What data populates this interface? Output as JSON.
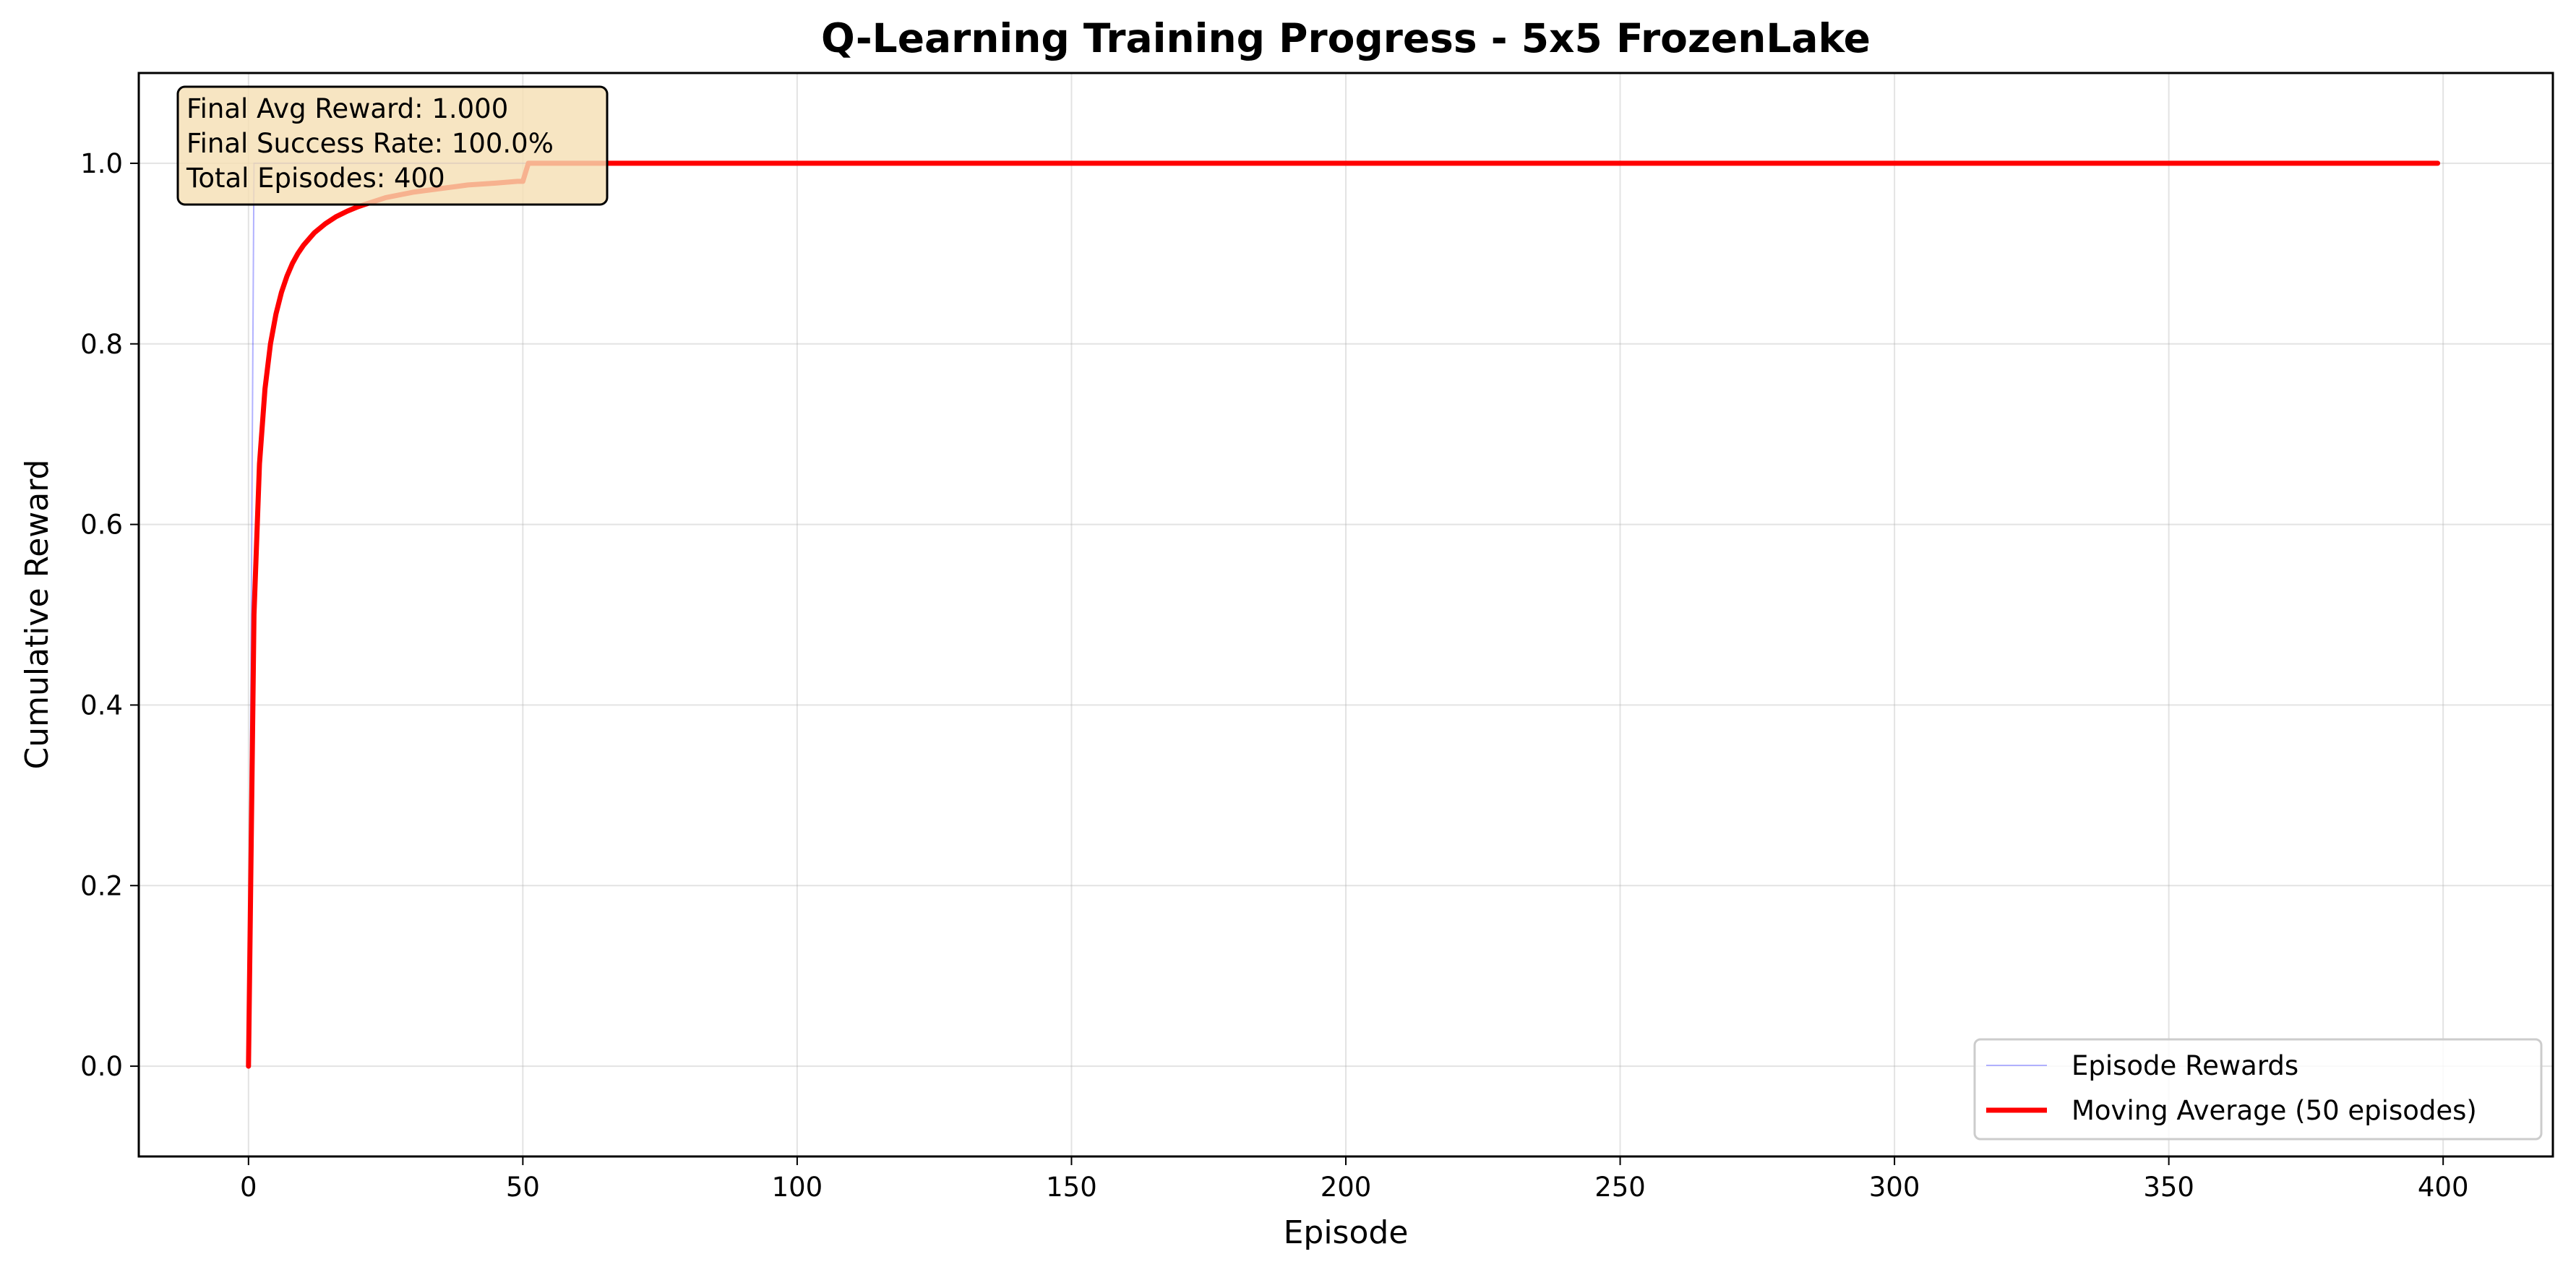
{
  "chart_data": {
    "type": "line",
    "title": "Q-Learning Training Progress - 5x5 FrozenLake",
    "xlabel": "Episode",
    "ylabel": "Cumulative Reward",
    "xlim": [
      -20,
      420
    ],
    "ylim": [
      -0.1,
      1.1
    ],
    "xticks": [
      0,
      50,
      100,
      150,
      200,
      250,
      300,
      350,
      400
    ],
    "yticks": [
      0.0,
      0.2,
      0.4,
      0.6,
      0.8,
      1.0
    ],
    "xtick_labels": [
      "0",
      "50",
      "100",
      "150",
      "200",
      "250",
      "300",
      "350",
      "400"
    ],
    "ytick_labels": [
      "0.0",
      "0.2",
      "0.4",
      "0.6",
      "0.8",
      "1.0"
    ],
    "grid": true,
    "legend_position": "lower-right",
    "series": [
      {
        "name": "Episode Rewards",
        "color": "#0000ff",
        "style": "thin-faint",
        "x": [
          0,
          1,
          2,
          399
        ],
        "y": [
          0.0,
          1.0,
          1.0,
          1.0
        ]
      },
      {
        "name": "Moving Average (50 episodes)",
        "color": "#ff0000",
        "style": "thick",
        "x": [
          0,
          1,
          2,
          3,
          4,
          5,
          6,
          7,
          8,
          9,
          10,
          12,
          14,
          16,
          18,
          20,
          25,
          30,
          35,
          40,
          45,
          49,
          50,
          51,
          60,
          100,
          150,
          200,
          250,
          300,
          350,
          399
        ],
        "y": [
          0.0,
          0.5,
          0.667,
          0.75,
          0.8,
          0.833,
          0.857,
          0.875,
          0.889,
          0.9,
          0.909,
          0.923,
          0.933,
          0.941,
          0.947,
          0.952,
          0.962,
          0.968,
          0.972,
          0.976,
          0.978,
          0.98,
          0.98,
          1.0,
          1.0,
          1.0,
          1.0,
          1.0,
          1.0,
          1.0,
          1.0,
          1.0
        ]
      }
    ],
    "annotation": {
      "lines": [
        "Final Avg Reward: 1.000",
        "Final Success Rate: 100.0%",
        "Total Episodes: 400"
      ],
      "background": "#f5deb3",
      "position": "top-left"
    }
  }
}
